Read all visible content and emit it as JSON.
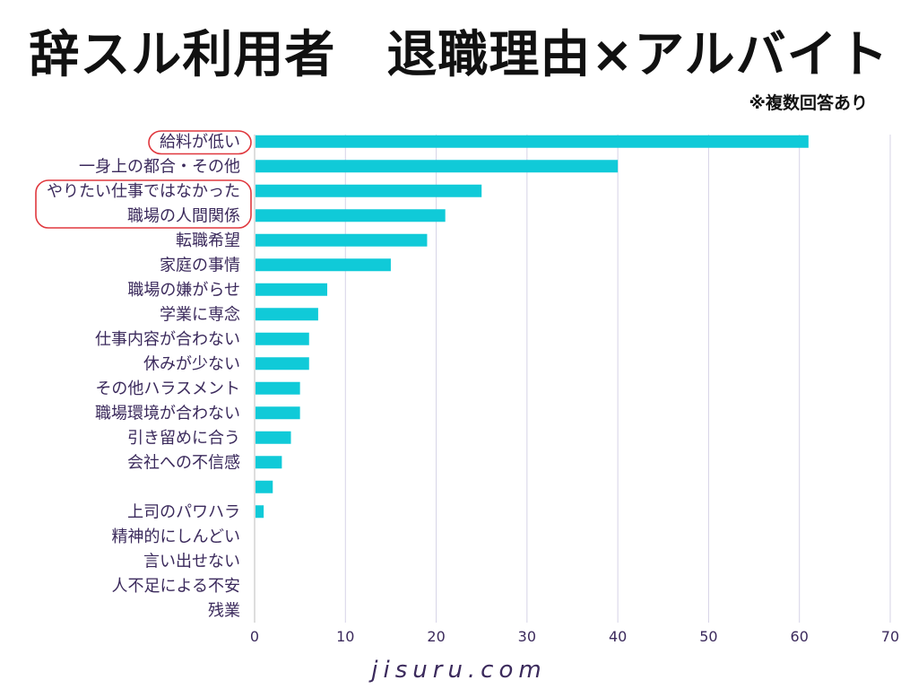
{
  "page": {
    "title": "辞スル利用者　退職理由×アルバイト",
    "note": "※複数回答あり",
    "footer": "jisuru.com"
  },
  "colors": {
    "bar": "#10cad8",
    "highlight": "#e0383e",
    "grid": "#d6d3e6",
    "axis": "#bdbdbd",
    "label": "#3b2a5c"
  },
  "highlighted_categories": [
    "給料が低い",
    "やりたい仕事ではなかった",
    "職場の人間関係"
  ],
  "chart_data": {
    "type": "bar",
    "orientation": "horizontal",
    "title": "辞スル利用者　退職理由×アルバイト",
    "subtitle": "※複数回答あり",
    "xlabel": "",
    "ylabel": "",
    "xlim": [
      0,
      70
    ],
    "xticks": [
      0,
      10,
      20,
      30,
      40,
      50,
      60,
      70
    ],
    "grid": true,
    "categories": [
      "給料が低い",
      "一身上の都合・その他",
      "やりたい仕事ではなかった",
      "職場の人間関係",
      "転職希望",
      "家庭の事情",
      "職場の嫌がらせ",
      "学業に専念",
      "仕事内容が合わない",
      "休みが少ない",
      "その他ハラスメント",
      "職場環境が合わない",
      "引き留めに合う",
      "会社への不信感",
      "",
      "上司のパワハラ",
      "精神的にしんどい",
      "言い出せない",
      "人不足による不安",
      "残業"
    ],
    "values": [
      61,
      40,
      25,
      21,
      19,
      15,
      8,
      7,
      6,
      6,
      5,
      5,
      4,
      3,
      2,
      1,
      0,
      0,
      0,
      0
    ]
  }
}
